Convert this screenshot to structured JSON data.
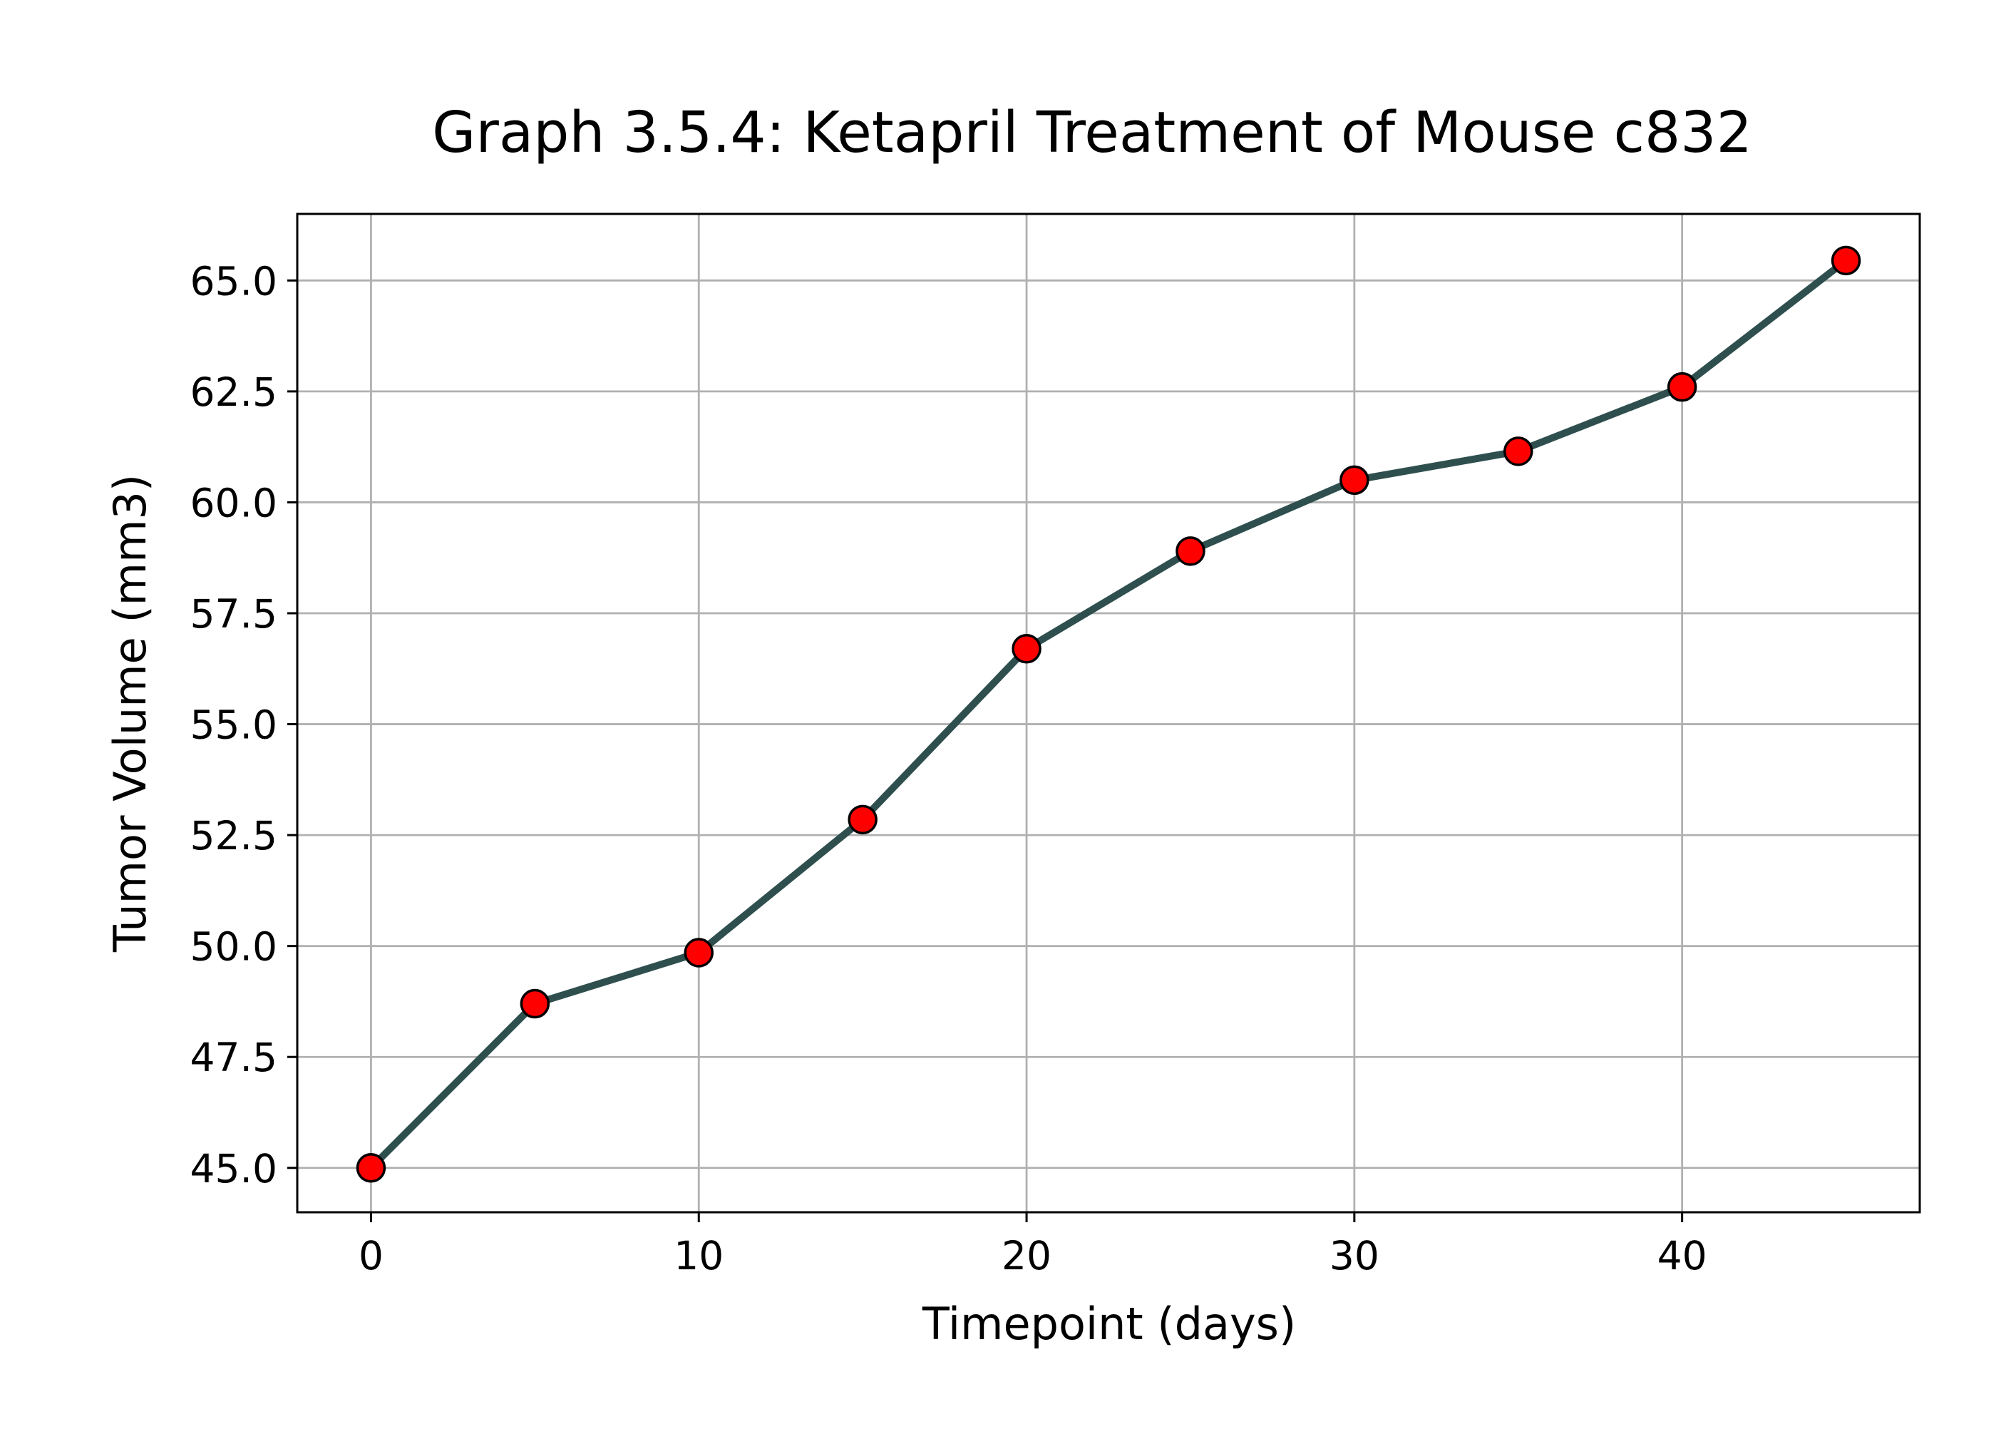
{
  "chart_data": {
    "type": "line",
    "title": "Graph 3.5.4: Ketapril Treatment of Mouse c832",
    "xlabel": "Timepoint (days)",
    "ylabel": "Tumor Volume (mm3)",
    "x": [
      0,
      5,
      10,
      15,
      20,
      25,
      30,
      35,
      40,
      45
    ],
    "series": [
      {
        "values": [
          45.0,
          48.7,
          49.85,
          52.85,
          56.7,
          58.9,
          60.5,
          61.15,
          62.6,
          65.45
        ]
      }
    ],
    "xlim": [
      -2.25,
      47.25
    ],
    "ylim": [
      44.0,
      66.5
    ],
    "xticks": [
      0,
      10,
      20,
      30,
      40
    ],
    "xtick_labels": [
      "0",
      "10",
      "20",
      "30",
      "40"
    ],
    "yticks": [
      45.0,
      47.5,
      50.0,
      52.5,
      55.0,
      57.5,
      60.0,
      62.5,
      65.0
    ],
    "ytick_labels": [
      "45.0",
      "47.5",
      "50.0",
      "52.5",
      "55.0",
      "57.5",
      "60.0",
      "62.5",
      "65.0"
    ],
    "grid": true,
    "legend": "none",
    "colors": {
      "line": "#2f4f4f",
      "marker_fill": "#ff0000",
      "marker_edge": "#000000",
      "grid": "#b0b0b0",
      "axes": "#000000"
    }
  }
}
